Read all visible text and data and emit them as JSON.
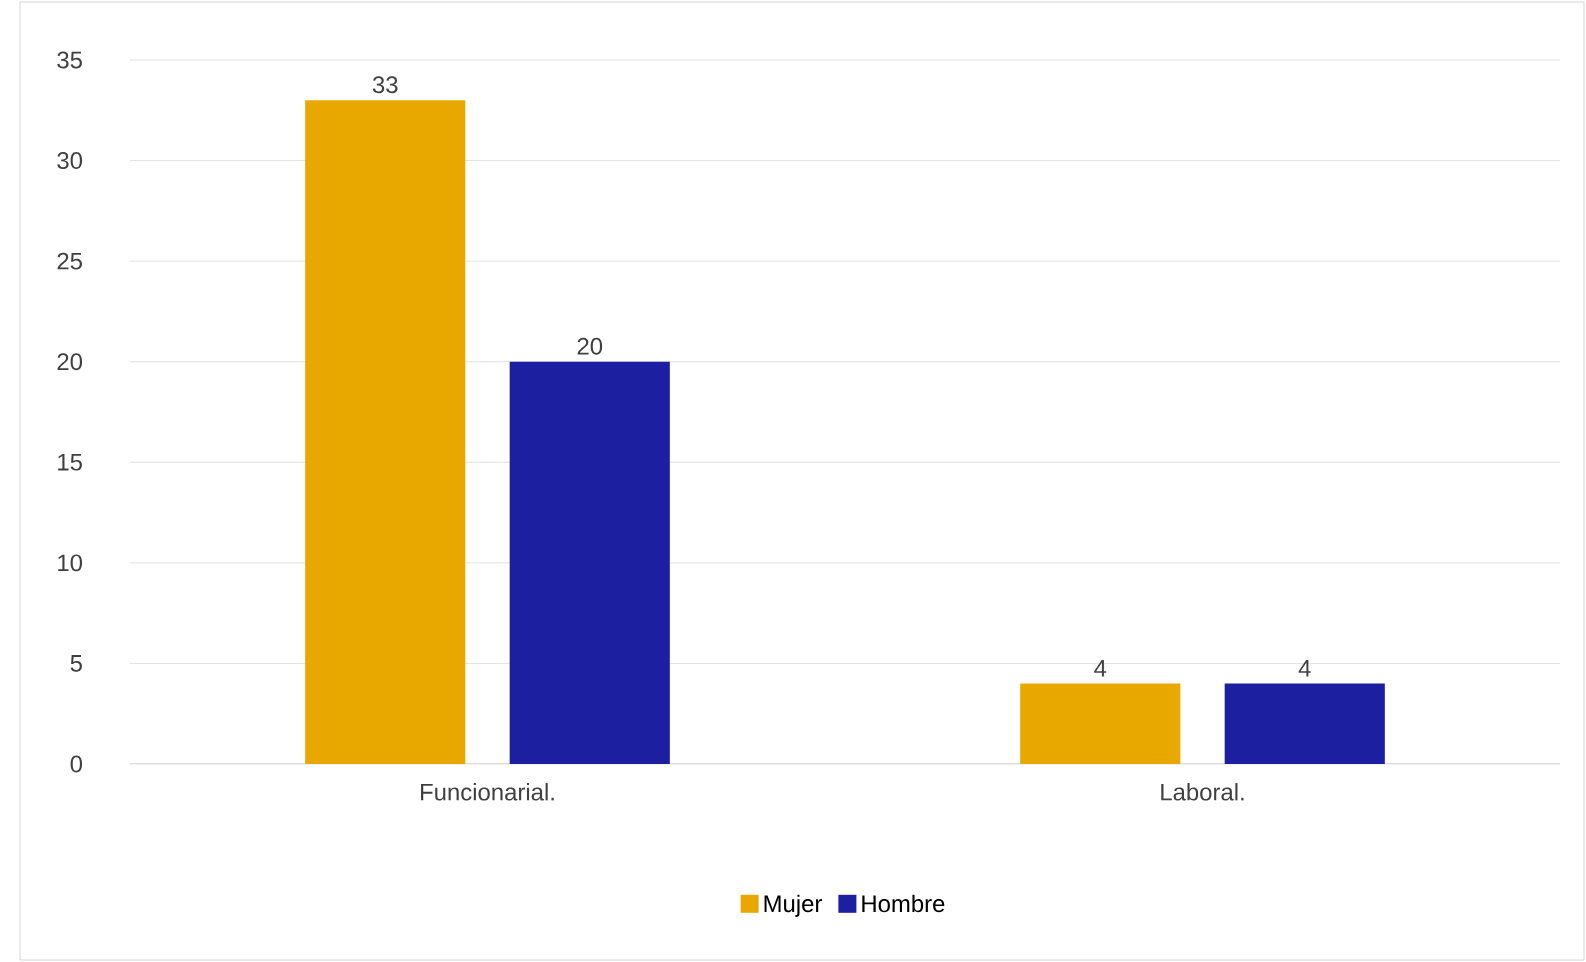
{
  "chart_data": {
    "type": "bar",
    "categories": [
      "Funcionarial.",
      "Laboral."
    ],
    "series": [
      {
        "name": "Mujer",
        "color": "#e8a800",
        "values": [
          33,
          4
        ]
      },
      {
        "name": "Hombre",
        "color": "#1c1fa0",
        "values": [
          20,
          4
        ]
      }
    ],
    "ylim": [
      0,
      35
    ],
    "yticks": [
      0,
      5,
      10,
      15,
      20,
      25,
      30,
      35
    ],
    "grid": "y",
    "legend": "bottom",
    "data_labels": true
  }
}
